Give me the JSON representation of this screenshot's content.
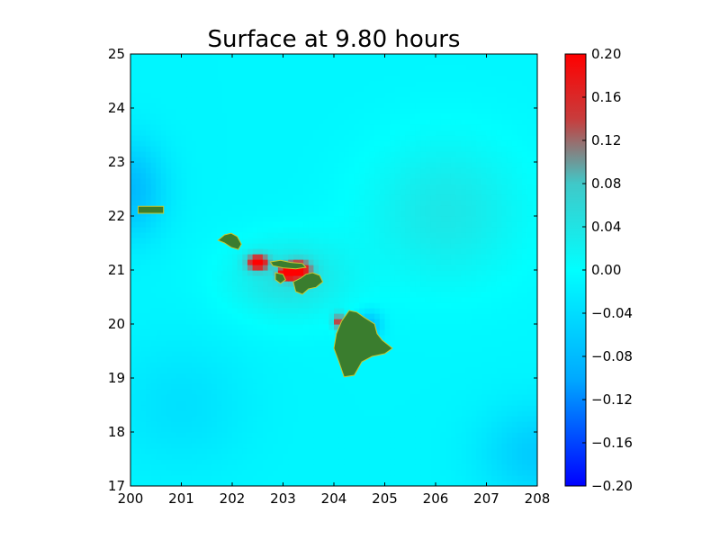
{
  "chart_data": {
    "type": "heatmap",
    "title": "Surface at 9.80 hours",
    "xlabel": "",
    "ylabel": "",
    "xlim": [
      200,
      208
    ],
    "ylim": [
      17,
      25
    ],
    "x_ticks": [
      200,
      201,
      202,
      203,
      204,
      205,
      206,
      207,
      208
    ],
    "y_ticks": [
      17,
      18,
      19,
      20,
      21,
      22,
      23,
      24,
      25
    ],
    "grid": false,
    "colorbar": {
      "range": [
        -0.2,
        0.2
      ],
      "ticks": [
        "0.20",
        "0.16",
        "0.12",
        "0.08",
        "0.04",
        "0.00",
        "−0.04",
        "−0.08",
        "−0.12",
        "−0.16",
        "−0.20"
      ],
      "colors": {
        "min": "#0000ff",
        "low": "#00aaff",
        "zero": "#00ffff",
        "mid": "#40c8c8",
        "high": "#c83c3c",
        "max": "#ff0000"
      }
    },
    "land_color": "#3a7d2e",
    "coast_color": "#c8c832",
    "land_masses": [
      {
        "name": "",
        "outline": [
          [
            200.15,
            22.05
          ],
          [
            200.65,
            22.05
          ],
          [
            200.65,
            22.18
          ],
          [
            200.15,
            22.18
          ]
        ]
      },
      {
        "name": "",
        "outline": [
          [
            201.72,
            21.55
          ],
          [
            201.85,
            21.65
          ],
          [
            201.98,
            21.68
          ],
          [
            202.1,
            21.62
          ],
          [
            202.18,
            21.48
          ],
          [
            202.12,
            21.38
          ],
          [
            201.98,
            21.42
          ],
          [
            201.85,
            21.5
          ]
        ]
      },
      {
        "name": "",
        "outline": [
          [
            202.75,
            21.15
          ],
          [
            202.95,
            21.18
          ],
          [
            203.15,
            21.14
          ],
          [
            203.38,
            21.12
          ],
          [
            203.45,
            21.05
          ],
          [
            203.25,
            21.02
          ],
          [
            203.0,
            21.04
          ],
          [
            202.8,
            21.08
          ]
        ]
      },
      {
        "name": "",
        "outline": [
          [
            202.85,
            20.95
          ],
          [
            203.0,
            20.92
          ],
          [
            203.05,
            20.82
          ],
          [
            202.95,
            20.75
          ],
          [
            202.85,
            20.82
          ]
        ]
      },
      {
        "name": "",
        "outline": [
          [
            203.2,
            20.78
          ],
          [
            203.35,
            20.85
          ],
          [
            203.45,
            20.92
          ],
          [
            203.58,
            20.95
          ],
          [
            203.72,
            20.9
          ],
          [
            203.78,
            20.78
          ],
          [
            203.65,
            20.68
          ],
          [
            203.5,
            20.65
          ],
          [
            203.38,
            20.55
          ],
          [
            203.25,
            20.6
          ]
        ]
      },
      {
        "name": "",
        "outline": [
          [
            204.15,
            20.05
          ],
          [
            204.3,
            20.25
          ],
          [
            204.45,
            20.22
          ],
          [
            204.6,
            20.12
          ],
          [
            204.8,
            20.0
          ],
          [
            204.85,
            19.82
          ],
          [
            204.95,
            19.7
          ],
          [
            205.15,
            19.55
          ],
          [
            205.0,
            19.45
          ],
          [
            204.75,
            19.4
          ],
          [
            204.55,
            19.3
          ],
          [
            204.4,
            19.05
          ],
          [
            204.2,
            19.02
          ],
          [
            204.1,
            19.3
          ],
          [
            204.0,
            19.55
          ],
          [
            204.05,
            19.82
          ]
        ]
      }
    ],
    "features": [
      {
        "kind": "positive_peak",
        "x": 202.5,
        "y": 21.15,
        "value": 0.2,
        "sx": 0.22,
        "sy": 0.15
      },
      {
        "kind": "positive_peak",
        "x": 203.3,
        "y": 21.0,
        "value": 0.2,
        "sx": 0.25,
        "sy": 0.18
      },
      {
        "kind": "positive_peak",
        "x": 203.05,
        "y": 20.95,
        "value": 0.18,
        "sx": 0.15,
        "sy": 0.12
      },
      {
        "kind": "positive_peak",
        "x": 204.1,
        "y": 20.05,
        "value": 0.16,
        "sx": 0.12,
        "sy": 0.15
      },
      {
        "kind": "positive_field",
        "x": 203.1,
        "y": 20.85,
        "value": 0.055,
        "sx": 1.2,
        "sy": 0.75
      },
      {
        "kind": "positive_field",
        "x": 206.2,
        "y": 22.1,
        "value": 0.045,
        "sx": 1.6,
        "sy": 1.4
      },
      {
        "kind": "negative_field",
        "x": 200.0,
        "y": 22.5,
        "value": -0.07,
        "sx": 0.7,
        "sy": 0.9
      },
      {
        "kind": "negative_field",
        "x": 208.0,
        "y": 17.6,
        "value": -0.05,
        "sx": 1.1,
        "sy": 0.9
      },
      {
        "kind": "negative_field",
        "x": 201.0,
        "y": 18.5,
        "value": -0.025,
        "sx": 1.3,
        "sy": 1.2
      },
      {
        "kind": "negative_field",
        "x": 204.7,
        "y": 20.0,
        "value": -0.07,
        "sx": 0.25,
        "sy": 0.25
      }
    ]
  }
}
